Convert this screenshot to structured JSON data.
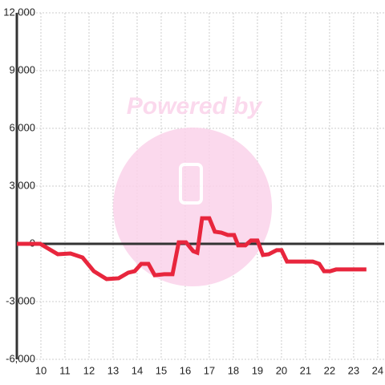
{
  "chart_data": {
    "type": "line",
    "watermark": "Powered by",
    "x": [
      9.0,
      9.97,
      10.7,
      11.23,
      11.73,
      12.2,
      12.73,
      13.23,
      13.63,
      13.9,
      14.17,
      14.47,
      14.73,
      15.13,
      15.47,
      15.73,
      16.03,
      16.33,
      16.5,
      16.7,
      17.0,
      17.23,
      17.5,
      17.77,
      18.03,
      18.2,
      18.5,
      18.73,
      19.0,
      19.23,
      19.47,
      19.8,
      20.0,
      20.23,
      21.3,
      21.57,
      21.77,
      22.03,
      22.27,
      23.53
    ],
    "series": [
      {
        "color": "#e8263d",
        "values": [
          0,
          0,
          -540,
          -500,
          -710,
          -1420,
          -1830,
          -1790,
          -1500,
          -1420,
          -1040,
          -1040,
          -1630,
          -1580,
          -1580,
          80,
          80,
          -380,
          -460,
          1330,
          1330,
          630,
          580,
          460,
          460,
          -80,
          -80,
          170,
          170,
          -580,
          -540,
          -330,
          -330,
          -920,
          -920,
          -1040,
          -1420,
          -1420,
          -1330,
          -1330
        ]
      }
    ],
    "xlim": [
      9,
      24.27
    ],
    "xticks": [
      10,
      11,
      12,
      13,
      14,
      15,
      16,
      17,
      18,
      19,
      20,
      21,
      22,
      23,
      24
    ],
    "ylim": [
      -6000,
      12000
    ],
    "yticks": [
      {
        "value": -6000,
        "label": "-6,000"
      },
      {
        "value": -3000,
        "label": "-3,000"
      },
      0,
      {
        "value": 3000,
        "label": "3,000"
      },
      {
        "value": 6000,
        "label": "6,000"
      },
      {
        "value": 9000,
        "label": "9,000"
      },
      {
        "value": 12000,
        "label": "12,000"
      }
    ],
    "grid": true
  }
}
